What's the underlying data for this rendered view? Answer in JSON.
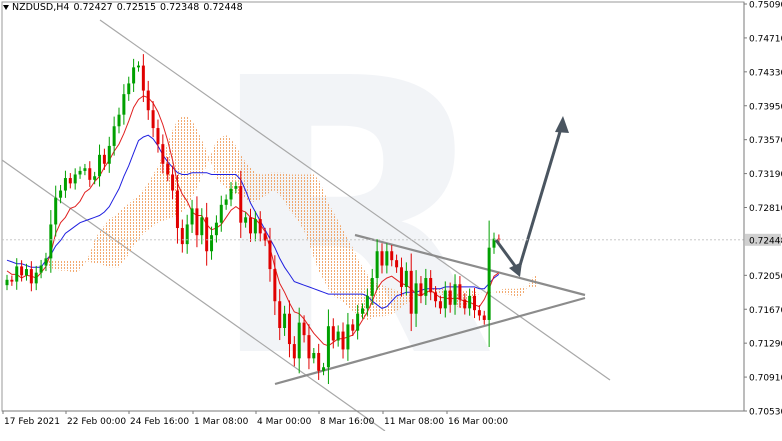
{
  "header": {
    "symbol": "NZDUSD,H4",
    "open": "0.72427",
    "high": "0.72515",
    "low": "0.72348",
    "close": "0.72448"
  },
  "watermark": "R",
  "colors": {
    "bull_candle": "#00a000",
    "bear_candle": "#e00000",
    "tenkan": "#e02020",
    "kijun": "#2020e0",
    "kumo": "#f0a060",
    "channel": "#a8a8a8",
    "triangle": "#8c8c8c",
    "arrow": "#4a5560",
    "current_price_label_bg": "#d0d0d0"
  },
  "chart_data": {
    "type": "candlestick",
    "instrument": "NZDUSD",
    "timeframe": "H4",
    "current_price": 0.72448,
    "y_axis": {
      "ticks": [
        "0.75090",
        "0.74710",
        "0.74330",
        "0.73950",
        "0.73570",
        "0.73190",
        "0.72810",
        "0.72448",
        "0.72050",
        "0.71670",
        "0.71290",
        "0.70910",
        "0.70530"
      ],
      "ylim": [
        0.7053,
        0.7509
      ]
    },
    "x_axis": {
      "ticks": [
        "17 Feb 2021",
        "22 Feb 00:00",
        "24 Feb 16:00",
        "1 Mar 08:00",
        "4 Mar 00:00",
        "8 Mar 16:00",
        "11 Mar 08:00",
        "16 Mar 00:00"
      ]
    },
    "closes": [
      0.72,
      0.7198,
      0.7215,
      0.7205,
      0.7212,
      0.7196,
      0.7208,
      0.7216,
      0.7224,
      0.7262,
      0.7292,
      0.73,
      0.7314,
      0.7308,
      0.7318,
      0.7322,
      0.7325,
      0.7312,
      0.7316,
      0.734,
      0.733,
      0.735,
      0.7372,
      0.7385,
      0.7408,
      0.742,
      0.7438,
      0.744,
      0.7412,
      0.739,
      0.737,
      0.7352,
      0.733,
      0.7318,
      0.73,
      0.7258,
      0.724,
      0.7262,
      0.728,
      0.725,
      0.727,
      0.7232,
      0.725,
      0.7264,
      0.7284,
      0.729,
      0.7302,
      0.7305,
      0.7264,
      0.727,
      0.7252,
      0.7268,
      0.7252,
      0.7244,
      0.7212,
      0.7176,
      0.7146,
      0.7162,
      0.7128,
      0.7112,
      0.7152,
      0.7138,
      0.7112,
      0.7118,
      0.7098,
      0.7102,
      0.7148,
      0.7132,
      0.7142,
      0.7122,
      0.715,
      0.7143,
      0.7162,
      0.7168,
      0.7182,
      0.7202,
      0.7232,
      0.7216,
      0.7232,
      0.7222,
      0.7214,
      0.7192,
      0.721,
      0.7162,
      0.7196,
      0.7182,
      0.7202,
      0.7186,
      0.7176,
      0.7168,
      0.7188,
      0.7172,
      0.7195,
      0.7178,
      0.7168,
      0.7182,
      0.7166,
      0.716,
      0.7155,
      0.7236,
      0.7246,
      0.7245
    ],
    "tenkan": [
      0.721,
      0.7206,
      0.7206,
      0.7202,
      0.7205,
      0.7204,
      0.7202,
      0.7208,
      0.7215,
      0.723,
      0.7252,
      0.7264,
      0.727,
      0.728,
      0.7282,
      0.7288,
      0.7298,
      0.7302,
      0.731,
      0.7316,
      0.7326,
      0.7334,
      0.7344,
      0.7352,
      0.7364,
      0.7378,
      0.7393,
      0.7402,
      0.7406,
      0.7404,
      0.7398,
      0.7388,
      0.7374,
      0.7356,
      0.7334,
      0.7308,
      0.7296,
      0.7288,
      0.7276,
      0.7272,
      0.7272,
      0.7262,
      0.7256,
      0.7258,
      0.7262,
      0.727,
      0.7278,
      0.7282,
      0.7278,
      0.7276,
      0.727,
      0.7268,
      0.7262,
      0.7254,
      0.7236,
      0.7214,
      0.7196,
      0.7186,
      0.7174,
      0.7164,
      0.7162,
      0.7156,
      0.7148,
      0.714,
      0.7134,
      0.7128,
      0.7126,
      0.713,
      0.7134,
      0.7134,
      0.7136,
      0.7138,
      0.7146,
      0.7155,
      0.7164,
      0.7176,
      0.719,
      0.7198,
      0.7202,
      0.7204,
      0.72,
      0.7196,
      0.7194,
      0.719,
      0.7184,
      0.7182,
      0.7186,
      0.7188,
      0.7184,
      0.718,
      0.718,
      0.7178,
      0.718,
      0.7178,
      0.7176,
      0.7175,
      0.7172,
      0.717,
      0.7178,
      0.719,
      0.7204,
      0.7208
    ],
    "kijun": [
      0.7222,
      0.722,
      0.7218,
      0.7218,
      0.7216,
      0.7214,
      0.7214,
      0.7214,
      0.7222,
      0.7228,
      0.7238,
      0.7244,
      0.7252,
      0.7256,
      0.726,
      0.7264,
      0.7266,
      0.7268,
      0.727,
      0.7272,
      0.7276,
      0.7282,
      0.7292,
      0.7302,
      0.7316,
      0.7328,
      0.7342,
      0.7356,
      0.736,
      0.7362,
      0.7358,
      0.735,
      0.734,
      0.7332,
      0.7326,
      0.732,
      0.7318,
      0.7318,
      0.732,
      0.732,
      0.732,
      0.732,
      0.7318,
      0.7318,
      0.7318,
      0.7318,
      0.7318,
      0.7318,
      0.7312,
      0.73,
      0.7286,
      0.7276,
      0.7266,
      0.7256,
      0.7246,
      0.7236,
      0.7224,
      0.7214,
      0.7206,
      0.7198,
      0.7196,
      0.7194,
      0.7192,
      0.719,
      0.7188,
      0.7186,
      0.7184,
      0.7184,
      0.7184,
      0.7184,
      0.7184,
      0.7184,
      0.7184,
      0.7184,
      0.7182,
      0.7176,
      0.7172,
      0.7168,
      0.717,
      0.7176,
      0.7182,
      0.7184,
      0.7186,
      0.7186,
      0.7186,
      0.7188,
      0.719,
      0.719,
      0.719,
      0.719,
      0.7192,
      0.7192,
      0.7192,
      0.7192,
      0.7192,
      0.7192,
      0.7192,
      0.719,
      0.719,
      0.7196,
      0.7202,
      0.7206
    ]
  }
}
